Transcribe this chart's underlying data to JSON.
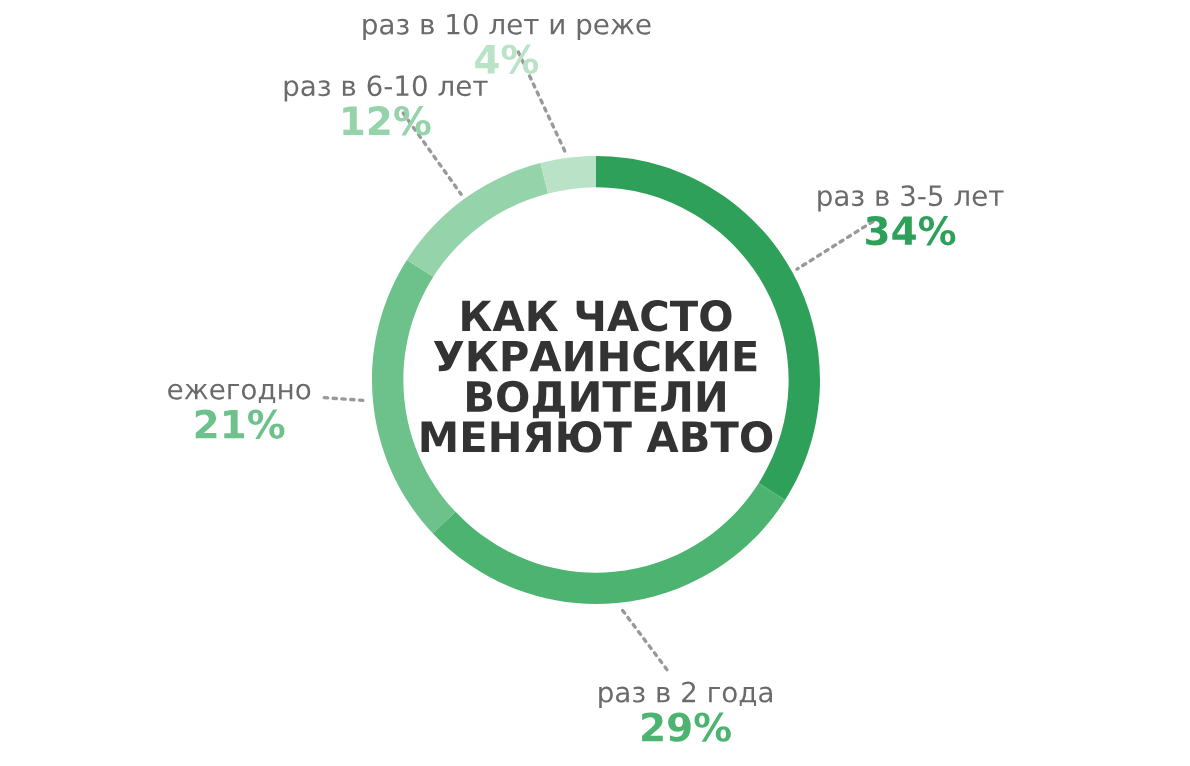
{
  "chart_data": {
    "type": "donut",
    "title": "КАК ЧАСТО\nУКРАИНСКИЕ\nВОДИТЕЛИ\nМЕНЯЮТ АВТО",
    "categories": [
      "раз в 3-5 лет",
      "раз в 2 года",
      "ежегодно",
      "раз в 6-10 лет",
      "раз в 10 лет и реже"
    ],
    "values": [
      34,
      29,
      21,
      12,
      4
    ],
    "colors": [
      "#2ea05a",
      "#4cb470",
      "#6cc28a",
      "#95d3aa",
      "#b9e2c7"
    ],
    "value_labels": [
      "34%",
      "29%",
      "21%",
      "12%",
      "4%"
    ]
  }
}
